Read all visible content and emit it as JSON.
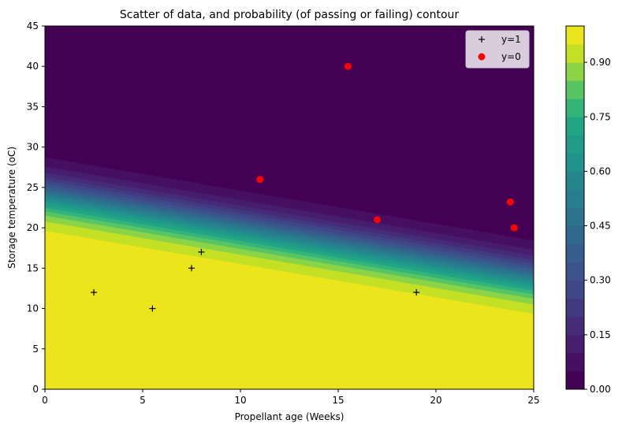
{
  "chart_data": {
    "type": "scatter",
    "title": "Scatter of data, and probability (of passing or failing) contour",
    "xlabel": "Propellant age (Weeks)",
    "ylabel": "Storage temperature (oC)",
    "xlim": [
      0,
      25
    ],
    "ylim": [
      0,
      45
    ],
    "x_ticks": [
      "0",
      "5",
      "10",
      "15",
      "20",
      "25"
    ],
    "y_ticks": [
      "0",
      "5",
      "10",
      "15",
      "20",
      "25",
      "30",
      "35",
      "40",
      "45"
    ],
    "grid": false,
    "legend": {
      "placement": "top-right"
    },
    "series": [
      {
        "name": "y=1",
        "marker": "+",
        "color": "#000000",
        "points": [
          {
            "x": 2.5,
            "y": 12
          },
          {
            "x": 5.5,
            "y": 10
          },
          {
            "x": 7.5,
            "y": 15
          },
          {
            "x": 8,
            "y": 17
          },
          {
            "x": 19,
            "y": 12
          }
        ]
      },
      {
        "name": "y=0",
        "marker": "o",
        "color": "#ff0000",
        "points": [
          {
            "x": 15.5,
            "y": 40
          },
          {
            "x": 11,
            "y": 26
          },
          {
            "x": 17,
            "y": 21
          },
          {
            "x": 23.8,
            "y": 23.2
          },
          {
            "x": 24,
            "y": 20
          }
        ]
      }
    ],
    "contour": {
      "type": "filled-contour",
      "colormap": "viridis",
      "description_values": "probability levels 0.00 to 1.00 in steps of 0.05",
      "levels": [
        0.0,
        0.05,
        0.1,
        0.15,
        0.2,
        0.25,
        0.3,
        0.35,
        0.4,
        0.45,
        0.5,
        0.55,
        0.6,
        0.65,
        0.7,
        0.75,
        0.8,
        0.85,
        0.9,
        0.95,
        1.0
      ],
      "boundary_at_x0": {
        "p0": 28.7,
        "p1": 19.6
      },
      "boundary_at_x25": {
        "p0": 18.4,
        "p1": 9.3
      }
    },
    "colorbar": {
      "ticks": [
        "0.00",
        "0.15",
        "0.30",
        "0.45",
        "0.60",
        "0.75",
        "0.90"
      ],
      "tick_values": [
        0.0,
        0.15,
        0.3,
        0.45,
        0.6,
        0.75,
        0.9
      ],
      "range": [
        0,
        1.0
      ]
    }
  }
}
